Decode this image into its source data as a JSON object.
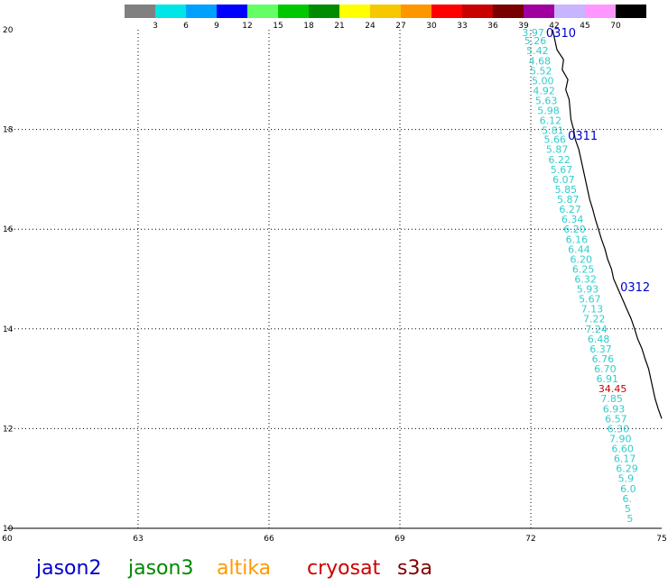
{
  "color_scale": {
    "colors": [
      "#808080",
      "#00e6e6",
      "#00a0ff",
      "#0000ff",
      "#64ff64",
      "#00c800",
      "#008c00",
      "#ffff00",
      "#f5c800",
      "#ff9600",
      "#ff0000",
      "#c80000",
      "#780000",
      "#a000a0",
      "#c8b4ff",
      "#ff96ff",
      "#000000"
    ],
    "labels": [
      "3",
      "6",
      "9",
      "12",
      "15",
      "18",
      "21",
      "24",
      "27",
      "30",
      "33",
      "36",
      "39",
      "42",
      "45",
      "70"
    ]
  },
  "chart_data": {
    "type": "scatter",
    "xlim": [
      60,
      75
    ],
    "ylim": [
      10,
      20
    ],
    "xticks": [
      "60",
      "63",
      "66",
      "69",
      "72",
      "75"
    ],
    "yticks": [
      "10",
      "12",
      "14",
      "16",
      "18",
      "20"
    ],
    "grid": true,
    "track_labels": [
      {
        "text": "0310",
        "x": 72.35,
        "y": 19.95
      },
      {
        "text": "0311",
        "x": 72.85,
        "y": 17.88
      },
      {
        "text": "0312",
        "x": 74.05,
        "y": 14.85
      }
    ],
    "points": [
      {
        "v": "3.97",
        "x": 71.8,
        "y": 19.95,
        "color": "#33cccc"
      },
      {
        "v": "5.26",
        "x": 71.85,
        "y": 19.78,
        "color": "#33cccc"
      },
      {
        "v": "5.42",
        "x": 71.9,
        "y": 19.58,
        "color": "#33cccc"
      },
      {
        "v": "4.68",
        "x": 71.95,
        "y": 19.38,
        "color": "#33cccc"
      },
      {
        "v": "5.52",
        "x": 71.98,
        "y": 19.18,
        "color": "#33cccc"
      },
      {
        "v": "5.00",
        "x": 72.02,
        "y": 18.98,
        "color": "#33cccc"
      },
      {
        "v": "4.92",
        "x": 72.05,
        "y": 18.78,
        "color": "#33cccc"
      },
      {
        "v": "5.63",
        "x": 72.1,
        "y": 18.58,
        "color": "#33cccc"
      },
      {
        "v": "5.98",
        "x": 72.15,
        "y": 18.38,
        "color": "#33cccc"
      },
      {
        "v": "6.12",
        "x": 72.2,
        "y": 18.18,
        "color": "#33cccc"
      },
      {
        "v": "5.81",
        "x": 72.25,
        "y": 17.98,
        "color": "#33cccc"
      },
      {
        "v": "5.66",
        "x": 72.3,
        "y": 17.8,
        "color": "#33cccc"
      },
      {
        "v": "5.87",
        "x": 72.35,
        "y": 17.6,
        "color": "#33cccc"
      },
      {
        "v": "6.22",
        "x": 72.4,
        "y": 17.4,
        "color": "#33cccc"
      },
      {
        "v": "5.67",
        "x": 72.45,
        "y": 17.2,
        "color": "#33cccc"
      },
      {
        "v": "6.07",
        "x": 72.5,
        "y": 17.0,
        "color": "#33cccc"
      },
      {
        "v": "5.85",
        "x": 72.55,
        "y": 16.8,
        "color": "#33cccc"
      },
      {
        "v": "5.87",
        "x": 72.6,
        "y": 16.6,
        "color": "#33cccc"
      },
      {
        "v": "6.27",
        "x": 72.65,
        "y": 16.4,
        "color": "#33cccc"
      },
      {
        "v": "6.34",
        "x": 72.7,
        "y": 16.2,
        "color": "#33cccc"
      },
      {
        "v": "6.20",
        "x": 72.75,
        "y": 16.0,
        "color": "#33cccc"
      },
      {
        "v": "6.16",
        "x": 72.8,
        "y": 15.8,
        "color": "#33cccc"
      },
      {
        "v": "6.44",
        "x": 72.85,
        "y": 15.6,
        "color": "#33cccc"
      },
      {
        "v": "6.20",
        "x": 72.9,
        "y": 15.4,
        "color": "#33cccc"
      },
      {
        "v": "6.25",
        "x": 72.95,
        "y": 15.2,
        "color": "#33cccc"
      },
      {
        "v": "6.32",
        "x": 73.0,
        "y": 15.0,
        "color": "#33cccc"
      },
      {
        "v": "5.93",
        "x": 73.05,
        "y": 14.8,
        "color": "#33cccc"
      },
      {
        "v": "5.67",
        "x": 73.1,
        "y": 14.6,
        "color": "#33cccc"
      },
      {
        "v": "7.13",
        "x": 73.15,
        "y": 14.4,
        "color": "#33cccc"
      },
      {
        "v": "7.22",
        "x": 73.2,
        "y": 14.2,
        "color": "#33cccc"
      },
      {
        "v": "7.24",
        "x": 73.25,
        "y": 14.0,
        "color": "#33cccc"
      },
      {
        "v": "6.48",
        "x": 73.3,
        "y": 13.8,
        "color": "#33cccc"
      },
      {
        "v": "6.37",
        "x": 73.35,
        "y": 13.6,
        "color": "#33cccc"
      },
      {
        "v": "6.76",
        "x": 73.4,
        "y": 13.4,
        "color": "#33cccc"
      },
      {
        "v": "6.70",
        "x": 73.45,
        "y": 13.2,
        "color": "#33cccc"
      },
      {
        "v": "6.91",
        "x": 73.5,
        "y": 13.0,
        "color": "#33cccc"
      },
      {
        "v": "34.45",
        "x": 73.55,
        "y": 12.8,
        "color": "#cc0000"
      },
      {
        "v": "7.85",
        "x": 73.6,
        "y": 12.6,
        "color": "#33cccc"
      },
      {
        "v": "6.93",
        "x": 73.65,
        "y": 12.4,
        "color": "#33cccc"
      },
      {
        "v": "6.57",
        "x": 73.7,
        "y": 12.2,
        "color": "#33cccc"
      },
      {
        "v": "6.30",
        "x": 73.75,
        "y": 12.0,
        "color": "#33cccc"
      },
      {
        "v": "7.90",
        "x": 73.8,
        "y": 11.8,
        "color": "#33cccc"
      },
      {
        "v": "6.60",
        "x": 73.85,
        "y": 11.6,
        "color": "#33cccc"
      },
      {
        "v": "6.17",
        "x": 73.9,
        "y": 11.4,
        "color": "#33cccc"
      },
      {
        "v": "6.29",
        "x": 73.95,
        "y": 11.2,
        "color": "#33cccc"
      },
      {
        "v": "5.9",
        "x": 74.0,
        "y": 11.0,
        "color": "#33cccc"
      },
      {
        "v": "6.0",
        "x": 74.05,
        "y": 10.8,
        "color": "#33cccc"
      },
      {
        "v": "6.",
        "x": 74.1,
        "y": 10.6,
        "color": "#33cccc"
      },
      {
        "v": "5",
        "x": 74.15,
        "y": 10.4,
        "color": "#33cccc"
      },
      {
        "v": "5",
        "x": 74.2,
        "y": 10.2,
        "color": "#33cccc"
      }
    ],
    "coastline": [
      [
        72.5,
        20.0
      ],
      [
        72.55,
        19.8
      ],
      [
        72.6,
        19.6
      ],
      [
        72.75,
        19.4
      ],
      [
        72.72,
        19.2
      ],
      [
        72.85,
        19.0
      ],
      [
        72.8,
        18.8
      ],
      [
        72.88,
        18.6
      ],
      [
        72.9,
        18.4
      ],
      [
        72.92,
        18.2
      ],
      [
        72.98,
        18.0
      ],
      [
        73.02,
        17.8
      ],
      [
        73.1,
        17.6
      ],
      [
        73.15,
        17.4
      ],
      [
        73.2,
        17.2
      ],
      [
        73.25,
        17.0
      ],
      [
        73.3,
        16.8
      ],
      [
        73.35,
        16.6
      ],
      [
        73.42,
        16.4
      ],
      [
        73.48,
        16.2
      ],
      [
        73.55,
        16.0
      ],
      [
        73.62,
        15.8
      ],
      [
        73.7,
        15.6
      ],
      [
        73.76,
        15.4
      ],
      [
        73.85,
        15.2
      ],
      [
        73.9,
        15.0
      ],
      [
        74.0,
        14.8
      ],
      [
        74.1,
        14.6
      ],
      [
        74.2,
        14.4
      ],
      [
        74.3,
        14.2
      ],
      [
        74.38,
        14.0
      ],
      [
        74.45,
        13.8
      ],
      [
        74.55,
        13.6
      ],
      [
        74.62,
        13.4
      ],
      [
        74.7,
        13.2
      ],
      [
        74.75,
        13.0
      ],
      [
        74.8,
        12.8
      ],
      [
        74.85,
        12.6
      ],
      [
        74.92,
        12.4
      ],
      [
        75.0,
        12.2
      ]
    ]
  },
  "legend": [
    {
      "name": "jason2",
      "color": "#0000cc"
    },
    {
      "name": "jason3",
      "color": "#008800"
    },
    {
      "name": "altika",
      "color": "#ff9900"
    },
    {
      "name": "cryosat",
      "color": "#cc0000"
    },
    {
      "name": "s3a",
      "color": "#800000"
    }
  ]
}
